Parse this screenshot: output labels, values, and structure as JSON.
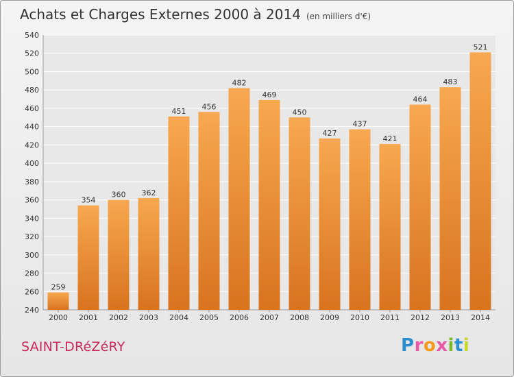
{
  "header": {
    "title": "Achats et Charges Externes 2000 à 2014",
    "subtitle": "(en milliers d'€)"
  },
  "footer": {
    "commune": "SAINT-DRéZéRY",
    "logo": [
      "P",
      "r",
      "o",
      "x",
      "i",
      "t",
      "i"
    ]
  },
  "colors": {
    "bar_light": "#f7a850",
    "bar_dark": "#d8731e",
    "commune": "#c82a5a"
  },
  "chart_data": {
    "type": "bar",
    "title": "Achats et Charges Externes 2000 à 2014",
    "subtitle": "(en milliers d'€)",
    "categories": [
      "2000",
      "2001",
      "2002",
      "2003",
      "2004",
      "2005",
      "2006",
      "2007",
      "2008",
      "2009",
      "2010",
      "2011",
      "2012",
      "2013",
      "2014"
    ],
    "values": [
      259,
      354,
      360,
      362,
      451,
      456,
      482,
      469,
      450,
      427,
      437,
      421,
      464,
      483,
      521
    ],
    "ylim": [
      240,
      540
    ],
    "yticks": [
      240,
      260,
      280,
      300,
      320,
      340,
      360,
      380,
      400,
      420,
      440,
      460,
      480,
      500,
      520,
      540
    ],
    "grid": true,
    "data_labels": true
  }
}
